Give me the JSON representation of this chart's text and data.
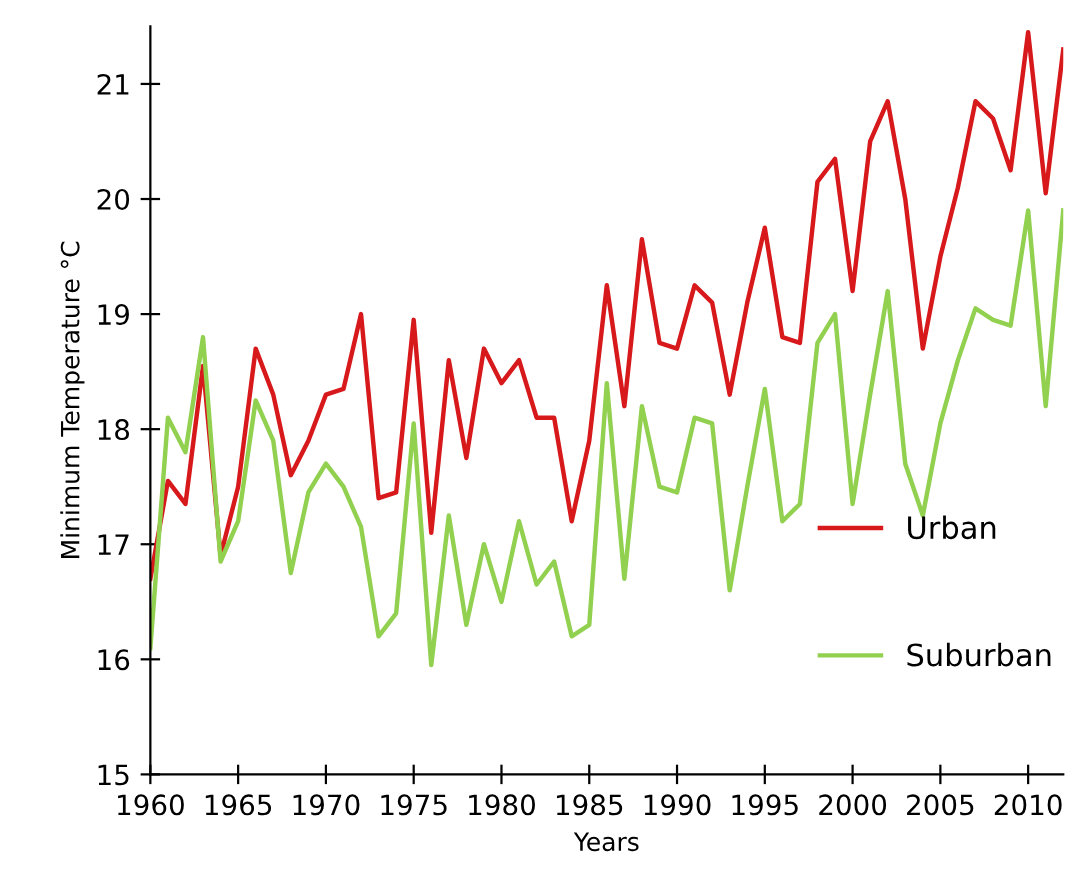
{
  "chart_data": {
    "type": "line",
    "xlabel": "Years",
    "ylabel": "Minimum Temperature °C",
    "x": [
      1960,
      1961,
      1962,
      1963,
      1964,
      1965,
      1966,
      1967,
      1968,
      1969,
      1970,
      1971,
      1972,
      1973,
      1974,
      1975,
      1976,
      1977,
      1978,
      1979,
      1980,
      1981,
      1982,
      1983,
      1984,
      1985,
      1986,
      1987,
      1988,
      1989,
      1990,
      1991,
      1992,
      1993,
      1994,
      1995,
      1996,
      1997,
      1998,
      1999,
      2000,
      2001,
      2002,
      2003,
      2004,
      2005,
      2006,
      2007,
      2008,
      2009,
      2010,
      2011,
      2012
    ],
    "series": [
      {
        "name": "Urban",
        "color": "#d7191c",
        "values": [
          16.7,
          17.55,
          17.35,
          18.55,
          16.9,
          17.5,
          18.7,
          18.3,
          17.6,
          17.9,
          18.3,
          18.35,
          19.0,
          17.4,
          17.45,
          18.95,
          17.1,
          18.6,
          17.75,
          18.7,
          18.4,
          18.6,
          18.1,
          18.1,
          17.2,
          17.9,
          19.25,
          18.2,
          19.65,
          18.75,
          18.7,
          19.25,
          19.1,
          18.3,
          19.1,
          19.75,
          18.8,
          18.75,
          20.15,
          20.35,
          19.2,
          20.5,
          20.85,
          20.0,
          18.7,
          19.5,
          20.1,
          20.85,
          20.7,
          20.25,
          21.45,
          20.05,
          21.3
        ]
      },
      {
        "name": "Suburban",
        "color": "#92d050",
        "values": [
          16.1,
          18.1,
          17.8,
          18.8,
          16.85,
          17.2,
          18.25,
          17.9,
          16.75,
          17.45,
          17.7,
          17.5,
          17.15,
          16.2,
          16.4,
          18.05,
          15.95,
          17.25,
          16.3,
          17.0,
          16.5,
          17.2,
          16.65,
          16.85,
          16.2,
          16.3,
          18.4,
          16.7,
          18.2,
          17.5,
          17.45,
          18.1,
          18.05,
          16.6,
          17.5,
          18.35,
          17.2,
          17.35,
          18.75,
          19.0,
          17.35,
          18.3,
          19.2,
          17.7,
          17.25,
          18.05,
          18.6,
          19.05,
          18.95,
          18.9,
          19.9,
          18.2,
          19.9
        ]
      }
    ],
    "xlim": [
      1960,
      2012
    ],
    "xticks": [
      1960,
      1965,
      1970,
      1975,
      1980,
      1985,
      1990,
      1995,
      2000,
      2005,
      2010
    ],
    "ylim": [
      15,
      21.5
    ],
    "yticks": [
      15,
      16,
      17,
      18,
      19,
      20,
      21
    ],
    "grid": false,
    "legend": "bottom right",
    "marker": "none",
    "line_style": "solid"
  }
}
